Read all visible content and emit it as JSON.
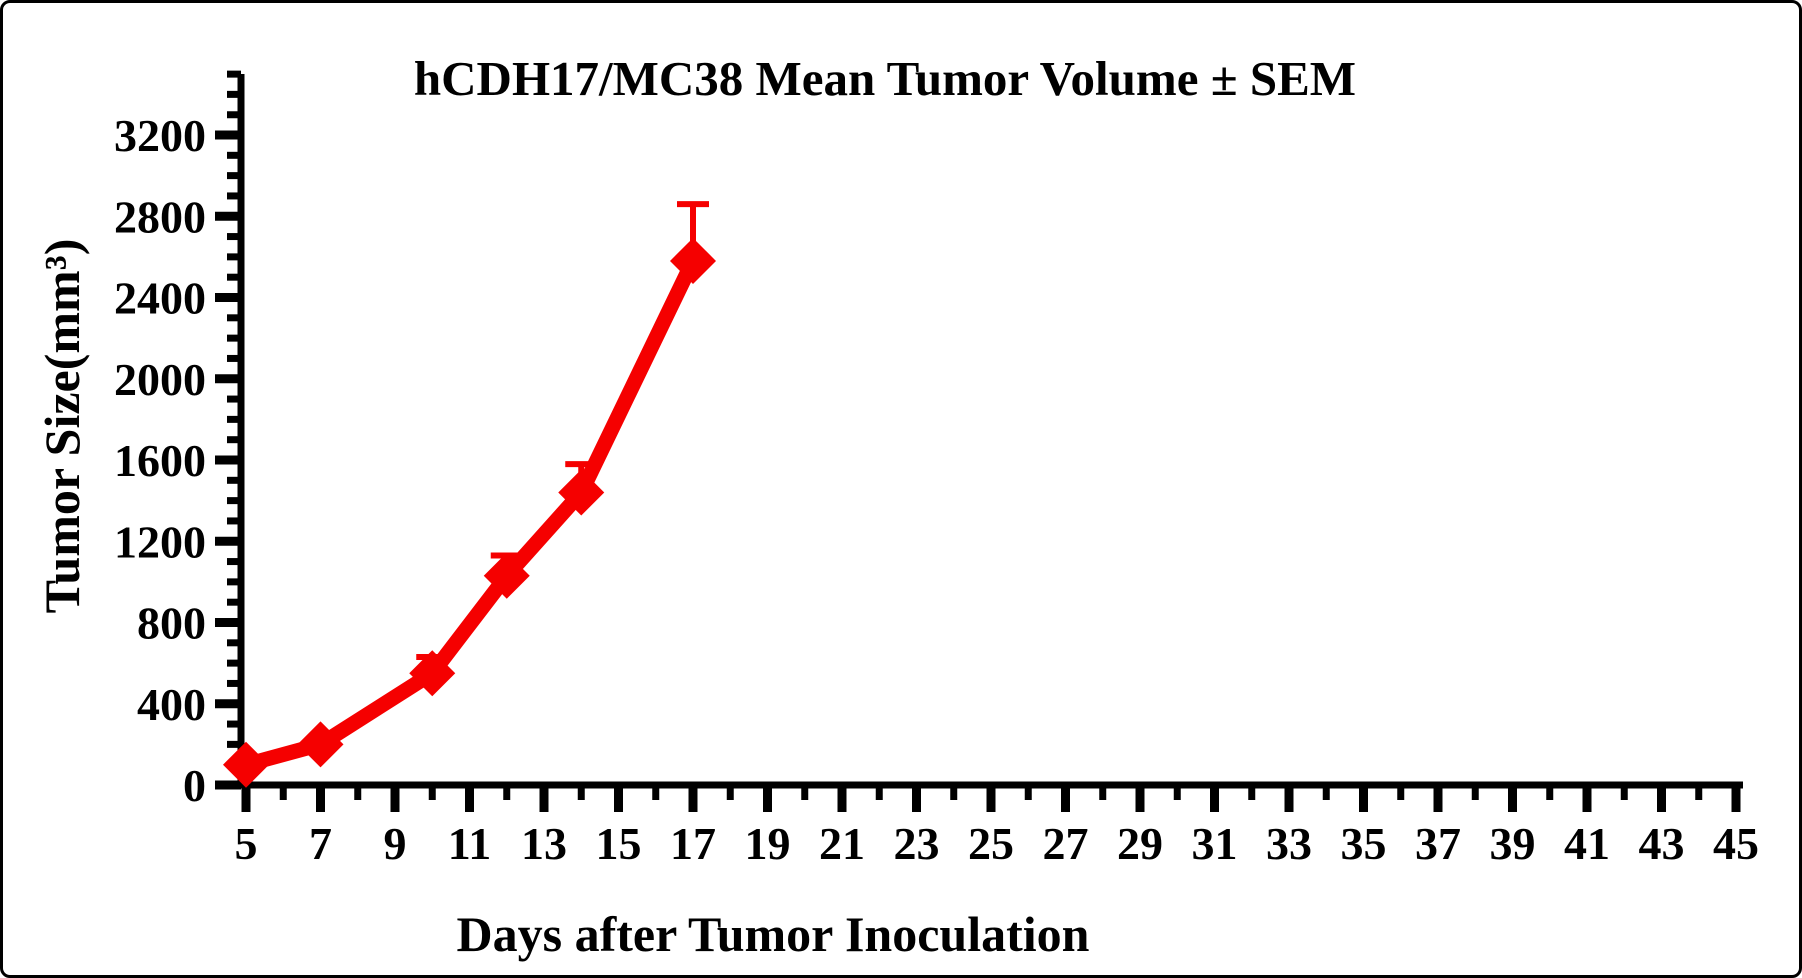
{
  "frame": {
    "background": "#ffffff",
    "border_color": "#000000"
  },
  "chart_data": {
    "type": "line",
    "title": "hCDH17/MC38 Mean Tumor Volume ± SEM",
    "xlabel": "Days after Tumor Inoculation",
    "ylabel": "Tumor Size(mm³)",
    "x": [
      5,
      7,
      10,
      12,
      14,
      17
    ],
    "series": [
      {
        "name": "hCDH17/MC38",
        "values": [
          100,
          200,
          550,
          1030,
          1440,
          2580
        ],
        "sem_upper": [
          null,
          null,
          80,
          100,
          140,
          280
        ],
        "color": "#f50000",
        "marker": "diamond"
      }
    ],
    "x_axis": {
      "min": 5,
      "max": 45,
      "tick_labels": [
        "5",
        "7",
        "9",
        "11",
        "13",
        "15",
        "17",
        "19",
        "21",
        "23",
        "25",
        "27",
        "29",
        "31",
        "33",
        "35",
        "37",
        "39",
        "41",
        "43",
        "45"
      ],
      "minor_tick_step": 1
    },
    "y_axis": {
      "min": 0,
      "max": 3500,
      "tick_labels": [
        "0",
        "400",
        "800",
        "1200",
        "1600",
        "2000",
        "2400",
        "2800",
        "3200"
      ],
      "major_step": 400,
      "minor_step": 100
    },
    "axis_color": "#000000",
    "grid": false,
    "legend": "none"
  }
}
